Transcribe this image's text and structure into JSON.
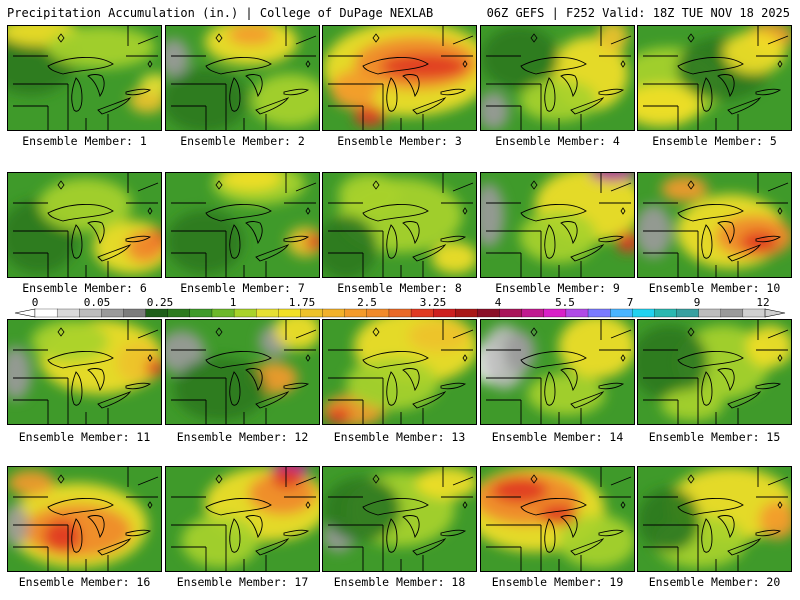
{
  "header": {
    "left": "Precipitation Accumulation (in.) | College of DuPage NEXLAB",
    "right": "06Z GEFS | F252 Valid: 18Z TUE NOV 18 2025"
  },
  "members": [
    {
      "label": "Ensemble Member: 1",
      "blobs": [
        [
          "#2d7a1e",
          0.15,
          0.3,
          0.3,
          0.35
        ],
        [
          "#f2e026",
          0.2,
          0.05,
          0.25,
          0.14
        ],
        [
          "#eec22b",
          0.9,
          0.7,
          0.12,
          0.12
        ],
        [
          "#a8d22a",
          0.6,
          0.2,
          0.35,
          0.2
        ],
        [
          "#e6e033",
          0.95,
          0.55,
          0.1,
          0.1
        ]
      ]
    },
    {
      "label": "Ensemble Member: 2",
      "blobs": [
        [
          "#9a9a9a",
          0.05,
          0.3,
          0.1,
          0.18
        ],
        [
          "#f2e026",
          0.55,
          0.15,
          0.3,
          0.22
        ],
        [
          "#f39a2b",
          0.55,
          0.08,
          0.15,
          0.1
        ],
        [
          "#2d7a1e",
          0.25,
          0.7,
          0.28,
          0.3
        ],
        [
          "#a8d22a",
          0.8,
          0.7,
          0.25,
          0.25
        ]
      ]
    },
    {
      "label": "Ensemble Member: 3",
      "blobs": [
        [
          "#f2e026",
          0.55,
          0.4,
          0.55,
          0.45
        ],
        [
          "#f08a2b",
          0.6,
          0.35,
          0.4,
          0.25
        ],
        [
          "#e03a22",
          0.65,
          0.38,
          0.28,
          0.12
        ],
        [
          "#e03a22",
          0.3,
          0.85,
          0.1,
          0.1
        ],
        [
          "#f39a2b",
          0.2,
          0.6,
          0.15,
          0.18
        ]
      ]
    },
    {
      "label": "Ensemble Member: 4",
      "blobs": [
        [
          "#9a9a9a",
          0.08,
          0.8,
          0.1,
          0.18
        ],
        [
          "#f2e026",
          0.7,
          0.45,
          0.25,
          0.35
        ],
        [
          "#eec22b",
          0.85,
          0.1,
          0.1,
          0.15
        ],
        [
          "#2d7a1e",
          0.25,
          0.3,
          0.25,
          0.3
        ],
        [
          "#a8d22a",
          0.5,
          0.7,
          0.25,
          0.2
        ]
      ]
    },
    {
      "label": "Ensemble Member: 5",
      "blobs": [
        [
          "#a8d22a",
          0.2,
          0.55,
          0.35,
          0.35
        ],
        [
          "#f2e026",
          0.15,
          0.75,
          0.25,
          0.2
        ],
        [
          "#f39a2b",
          0.85,
          0.1,
          0.15,
          0.14
        ],
        [
          "#2d7a1e",
          0.55,
          0.4,
          0.3,
          0.3
        ],
        [
          "#f2e026",
          0.75,
          0.25,
          0.2,
          0.2
        ]
      ]
    },
    {
      "label": "Ensemble Member: 6",
      "blobs": [
        [
          "#f2e026",
          0.8,
          0.7,
          0.25,
          0.25
        ],
        [
          "#e03a22",
          0.95,
          0.65,
          0.08,
          0.12
        ],
        [
          "#f08a2b",
          0.88,
          0.7,
          0.12,
          0.15
        ],
        [
          "#2d7a1e",
          0.2,
          0.6,
          0.25,
          0.35
        ],
        [
          "#a8d22a",
          0.5,
          0.3,
          0.3,
          0.25
        ]
      ]
    },
    {
      "label": "Ensemble Member: 7",
      "blobs": [
        [
          "#eec22b",
          0.9,
          0.65,
          0.12,
          0.14
        ],
        [
          "#e03a22",
          0.96,
          0.65,
          0.06,
          0.08
        ],
        [
          "#a8d22a",
          0.6,
          0.1,
          0.3,
          0.2
        ],
        [
          "#f2e026",
          0.55,
          0.05,
          0.2,
          0.12
        ],
        [
          "#2d7a1e",
          0.25,
          0.65,
          0.25,
          0.3
        ]
      ]
    },
    {
      "label": "Ensemble Member: 8",
      "blobs": [
        [
          "#a8d22a",
          0.5,
          0.4,
          0.4,
          0.35
        ],
        [
          "#2d7a1e",
          0.15,
          0.7,
          0.2,
          0.3
        ],
        [
          "#f2e026",
          0.85,
          0.8,
          0.15,
          0.15
        ],
        [
          "#a8d22a",
          0.3,
          0.2,
          0.2,
          0.2
        ]
      ]
    },
    {
      "label": "Ensemble Member: 9",
      "blobs": [
        [
          "#9a9a9a",
          0.05,
          0.4,
          0.1,
          0.3
        ],
        [
          "#f2e026",
          0.7,
          0.3,
          0.35,
          0.35
        ],
        [
          "#b01fa0",
          0.85,
          0.0,
          0.15,
          0.08
        ],
        [
          "#e03a22",
          0.95,
          0.65,
          0.08,
          0.1
        ],
        [
          "#a8d22a",
          0.5,
          0.6,
          0.25,
          0.25
        ]
      ]
    },
    {
      "label": "Ensemble Member: 10",
      "blobs": [
        [
          "#9a9a9a",
          0.1,
          0.55,
          0.12,
          0.25
        ],
        [
          "#f2e026",
          0.6,
          0.55,
          0.35,
          0.35
        ],
        [
          "#f08a2b",
          0.75,
          0.6,
          0.25,
          0.2
        ],
        [
          "#e03a22",
          0.78,
          0.65,
          0.12,
          0.1
        ],
        [
          "#f39a2b",
          0.3,
          0.15,
          0.15,
          0.12
        ]
      ]
    },
    {
      "label": "Ensemble Member: 11",
      "blobs": [
        [
          "#9a9a9a",
          0.05,
          0.5,
          0.1,
          0.25
        ],
        [
          "#f2e026",
          0.6,
          0.35,
          0.4,
          0.35
        ],
        [
          "#eec22b",
          0.85,
          0.4,
          0.15,
          0.2
        ],
        [
          "#e03a22",
          0.95,
          0.45,
          0.06,
          0.08
        ],
        [
          "#a8d22a",
          0.4,
          0.2,
          0.25,
          0.2
        ]
      ]
    },
    {
      "label": "Ensemble Member: 12",
      "blobs": [
        [
          "#9a9a9a",
          0.1,
          0.3,
          0.15,
          0.2
        ],
        [
          "#9a9a9a",
          0.7,
          0.2,
          0.1,
          0.15
        ],
        [
          "#f2e026",
          0.85,
          0.1,
          0.15,
          0.18
        ],
        [
          "#f39a2b",
          0.7,
          0.55,
          0.15,
          0.15
        ],
        [
          "#2d7a1e",
          0.35,
          0.65,
          0.3,
          0.3
        ]
      ]
    },
    {
      "label": "Ensemble Member: 13",
      "blobs": [
        [
          "#f2e026",
          0.6,
          0.25,
          0.4,
          0.35
        ],
        [
          "#eec22b",
          0.75,
          0.15,
          0.2,
          0.15
        ],
        [
          "#f39a2b",
          0.2,
          0.85,
          0.2,
          0.15
        ],
        [
          "#e03a22",
          0.1,
          0.9,
          0.08,
          0.08
        ],
        [
          "#a8d22a",
          0.45,
          0.6,
          0.3,
          0.25
        ]
      ]
    },
    {
      "label": "Ensemble Member: 14",
      "blobs": [
        [
          "#ffffff",
          0.05,
          0.4,
          0.1,
          0.2
        ],
        [
          "#bdbdbd",
          0.15,
          0.35,
          0.15,
          0.3
        ],
        [
          "#9a9a9a",
          0.25,
          0.3,
          0.1,
          0.2
        ],
        [
          "#f2e026",
          0.75,
          0.25,
          0.25,
          0.3
        ],
        [
          "#a8d22a",
          0.55,
          0.7,
          0.25,
          0.2
        ]
      ]
    },
    {
      "label": "Ensemble Member: 15",
      "blobs": [
        [
          "#a8d22a",
          0.55,
          0.4,
          0.3,
          0.35
        ],
        [
          "#f2e026",
          0.85,
          0.25,
          0.15,
          0.2
        ],
        [
          "#2d7a1e",
          0.2,
          0.4,
          0.25,
          0.35
        ],
        [
          "#a8d22a",
          0.35,
          0.8,
          0.2,
          0.15
        ]
      ]
    },
    {
      "label": "Ensemble Member: 16",
      "blobs": [
        [
          "#f2e026",
          0.45,
          0.55,
          0.45,
          0.4
        ],
        [
          "#f08a2b",
          0.45,
          0.6,
          0.35,
          0.25
        ],
        [
          "#e03a22",
          0.35,
          0.65,
          0.12,
          0.15
        ],
        [
          "#9a9a9a",
          0.05,
          0.55,
          0.08,
          0.2
        ],
        [
          "#f39a2b",
          0.15,
          0.15,
          0.15,
          0.12
        ]
      ]
    },
    {
      "label": "Ensemble Member: 17",
      "blobs": [
        [
          "#f2e026",
          0.65,
          0.35,
          0.4,
          0.35
        ],
        [
          "#f08a2b",
          0.75,
          0.25,
          0.22,
          0.2
        ],
        [
          "#b01fa0",
          0.8,
          0.02,
          0.12,
          0.1
        ],
        [
          "#e03a22",
          0.78,
          0.1,
          0.1,
          0.1
        ],
        [
          "#a8d22a",
          0.35,
          0.7,
          0.25,
          0.25
        ]
      ]
    },
    {
      "label": "Ensemble Member: 18",
      "blobs": [
        [
          "#a8d22a",
          0.5,
          0.4,
          0.35,
          0.35
        ],
        [
          "#f2e026",
          0.8,
          0.15,
          0.2,
          0.15
        ],
        [
          "#9a9a9a",
          0.1,
          0.65,
          0.1,
          0.15
        ],
        [
          "#2d7a1e",
          0.25,
          0.4,
          0.25,
          0.3
        ]
      ]
    },
    {
      "label": "Ensemble Member: 19",
      "blobs": [
        [
          "#f2e026",
          0.35,
          0.4,
          0.45,
          0.4
        ],
        [
          "#f08a2b",
          0.3,
          0.3,
          0.35,
          0.25
        ],
        [
          "#e03a22",
          0.25,
          0.22,
          0.18,
          0.12
        ],
        [
          "#e03a22",
          0.5,
          0.45,
          0.12,
          0.1
        ],
        [
          "#a8d22a",
          0.75,
          0.7,
          0.25,
          0.25
        ]
      ]
    },
    {
      "label": "Ensemble Member: 20",
      "blobs": [
        [
          "#f2e026",
          0.6,
          0.35,
          0.4,
          0.35
        ],
        [
          "#f39a2b",
          0.9,
          0.5,
          0.12,
          0.18
        ],
        [
          "#a8d22a",
          0.4,
          0.7,
          0.3,
          0.25
        ],
        [
          "#2d7a1e",
          0.2,
          0.5,
          0.2,
          0.3
        ]
      ]
    }
  ],
  "colorbar": {
    "colors": [
      "#ffffff",
      "#d9d9d9",
      "#bdbdbd",
      "#9a9a9a",
      "#7c7c7c",
      "#1f5e1a",
      "#2d7a1e",
      "#3f9a2a",
      "#6cb82a",
      "#a8d22a",
      "#e6e033",
      "#f2e026",
      "#eec22b",
      "#f2b12b",
      "#f39a2b",
      "#f08a2b",
      "#ea6a28",
      "#e03a22",
      "#cc1f1f",
      "#a81717",
      "#8a0f28",
      "#a8155a",
      "#c01a90",
      "#d81fc8",
      "#b04ae6",
      "#7a7aff",
      "#4ab4ff",
      "#22d2f0",
      "#2ab8b0",
      "#38a0a0",
      "#bdbdbd",
      "#9a9a9a",
      "#d0d0d0"
    ],
    "ticks": [
      "0",
      "0.05",
      "0.25",
      "1",
      "1.75",
      "2.5",
      "3.25",
      "4",
      "5.5",
      "7",
      "9",
      "12"
    ]
  }
}
